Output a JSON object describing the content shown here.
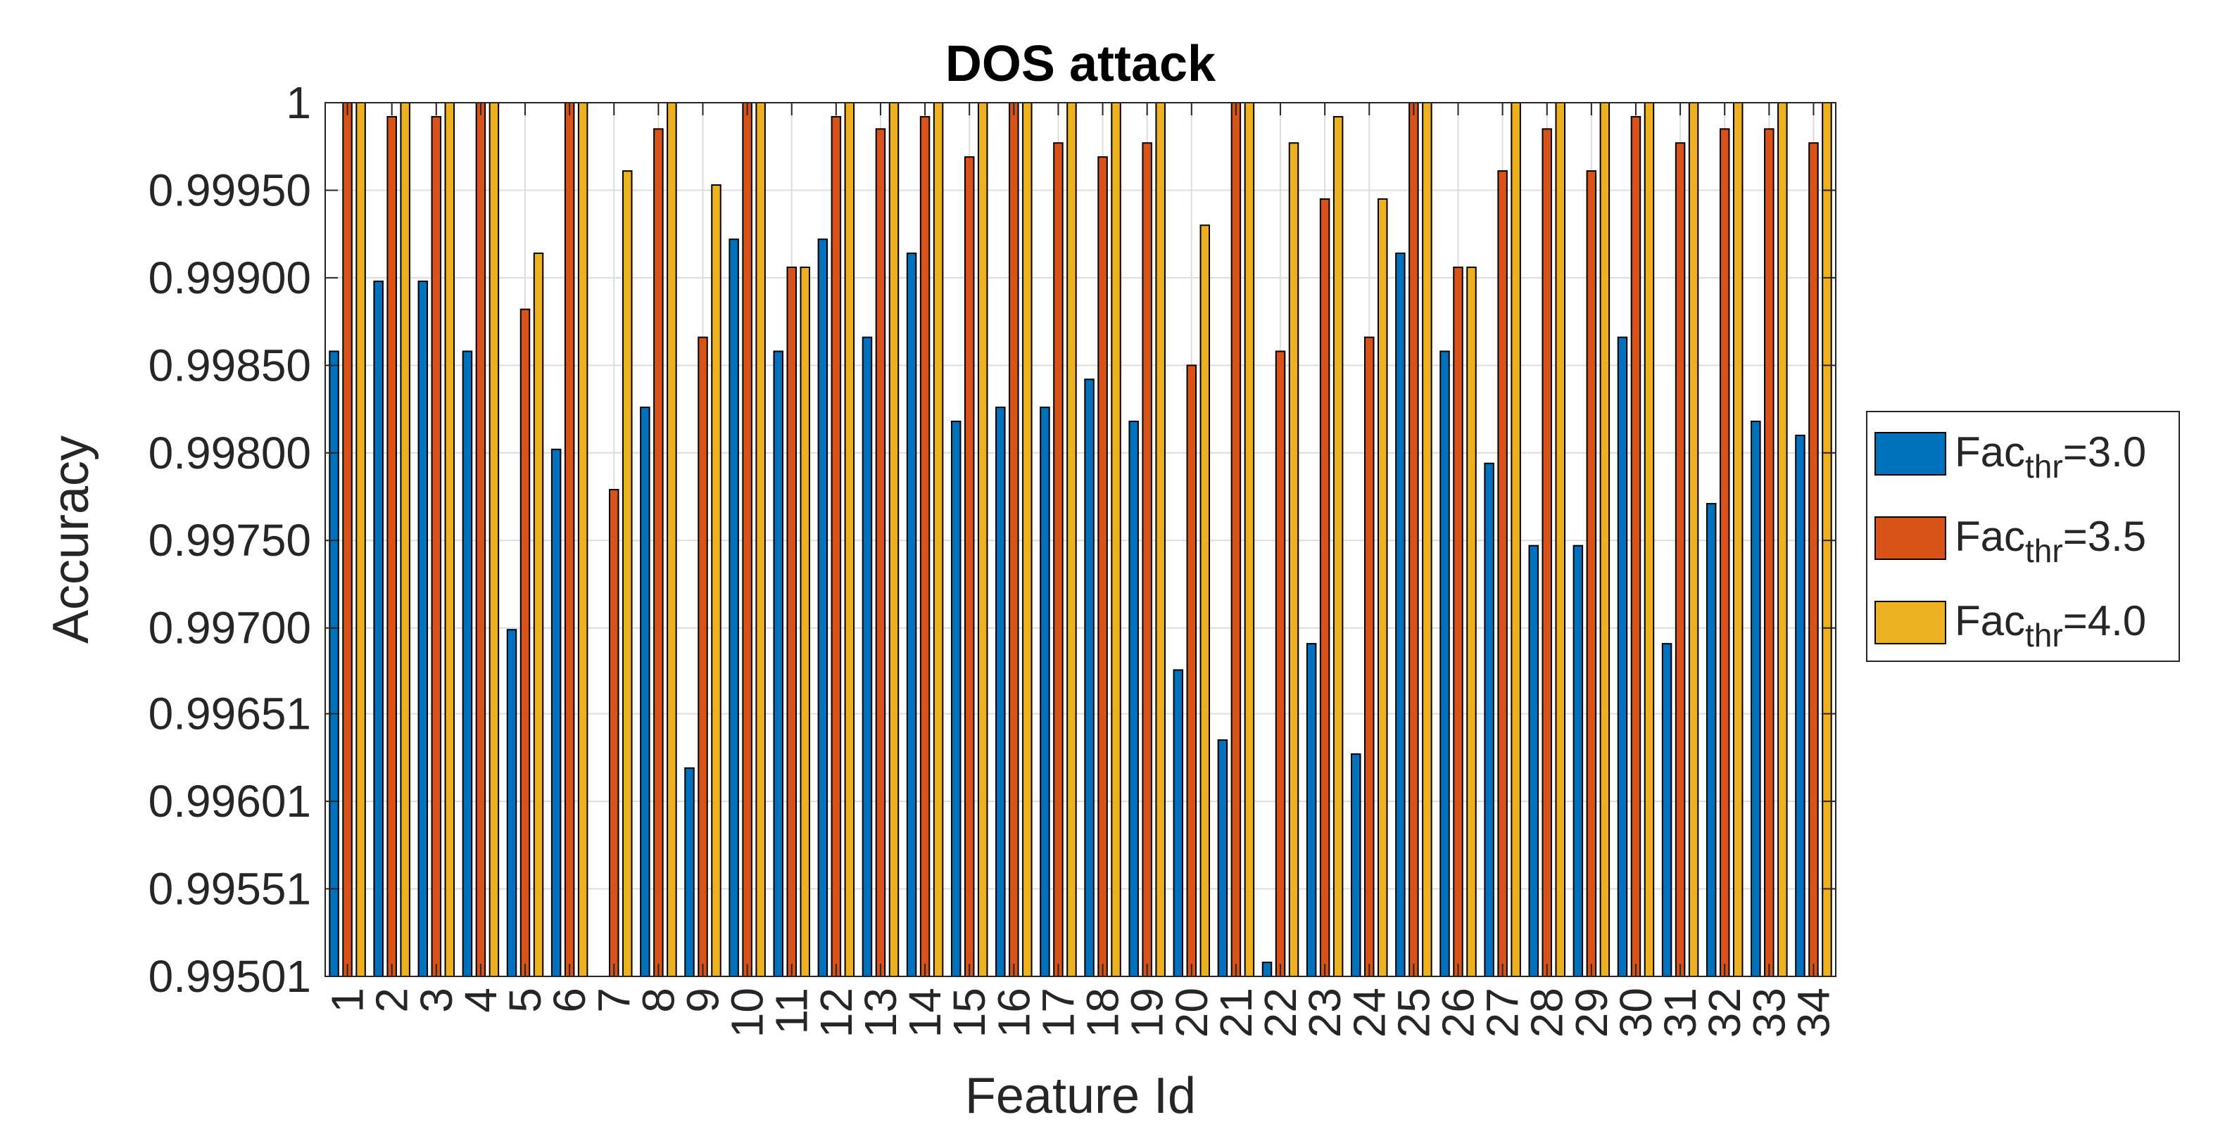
{
  "chart_data": {
    "type": "bar",
    "title": "DOS attack",
    "xlabel": "Feature Id",
    "ylabel": "Accuracy",
    "ylim": [
      0.99501,
      1.0
    ],
    "grid": true,
    "legend_position": "right",
    "categories": [
      "1",
      "2",
      "3",
      "4",
      "5",
      "6",
      "7",
      "8",
      "9",
      "10",
      "11",
      "12",
      "13",
      "14",
      "15",
      "16",
      "17",
      "18",
      "19",
      "20",
      "21",
      "22",
      "23",
      "24",
      "25",
      "26",
      "27",
      "28",
      "29",
      "30",
      "31",
      "32",
      "33",
      "34"
    ],
    "yticks": [
      0.99501,
      0.99551,
      0.99601,
      0.99651,
      0.997,
      0.9975,
      0.998,
      0.9985,
      0.999,
      0.9995,
      1
    ],
    "ytick_labels": [
      "0.99501",
      "0.99551",
      "0.99601",
      "0.99651",
      "0.99700",
      "0.99750",
      "0.99800",
      "0.99850",
      "0.99900",
      "0.99950",
      "1"
    ],
    "series": [
      {
        "name": "Fac_thr=3.0",
        "legend": {
          "base": "Fac",
          "sub": "thr",
          "rest": "=3.0"
        },
        "color": "#0072BD",
        "values": [
          0.99858,
          0.99898,
          0.99898,
          0.99858,
          0.99699,
          0.99802,
          0.99501,
          0.99826,
          0.9962,
          0.99922,
          0.99858,
          0.99922,
          0.99866,
          0.99914,
          0.99818,
          0.99826,
          0.99826,
          0.99842,
          0.99818,
          0.99676,
          0.99636,
          0.99509,
          0.99691,
          0.99628,
          0.99914,
          0.99858,
          0.99794,
          0.99747,
          0.99747,
          0.99866,
          0.99691,
          0.99771,
          0.99818,
          0.9981
        ]
      },
      {
        "name": "Fac_thr=3.5",
        "legend": {
          "base": "Fac",
          "sub": "thr",
          "rest": "=3.5"
        },
        "color": "#D95319",
        "values": [
          1.0,
          0.99992,
          0.99992,
          1.0,
          0.99882,
          1.0,
          0.99779,
          0.99985,
          0.99866,
          1.0,
          0.99906,
          0.99992,
          0.99985,
          0.99992,
          0.99969,
          1.0,
          0.99977,
          0.99969,
          0.99977,
          0.9985,
          1.0,
          0.99858,
          0.99945,
          0.99866,
          1.0,
          0.99906,
          0.99961,
          0.99985,
          0.99961,
          0.99992,
          0.99977,
          0.99985,
          0.99985,
          0.99977
        ]
      },
      {
        "name": "Fac_thr=4.0",
        "legend": {
          "base": "Fac",
          "sub": "thr",
          "rest": "=4.0"
        },
        "color": "#EDB120",
        "values": [
          1.0,
          1.0,
          1.0,
          1.0,
          0.99914,
          1.0,
          0.99961,
          1.0,
          0.99953,
          1.0,
          0.99906,
          1.0,
          1.0,
          1.0,
          1.0,
          1.0,
          1.0,
          1.0,
          1.0,
          0.9993,
          1.0,
          0.99977,
          0.99992,
          0.99945,
          1.0,
          0.99906,
          1.0,
          1.0,
          1.0,
          1.0,
          1.0,
          1.0,
          1.0,
          1.0
        ]
      }
    ]
  }
}
